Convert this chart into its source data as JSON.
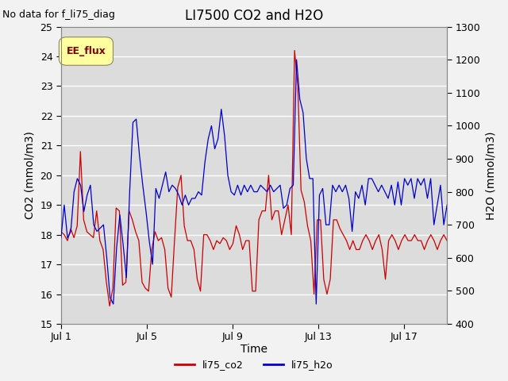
{
  "title": "LI7500 CO2 and H2O",
  "top_left_text": "No data for f_li75_diag",
  "xlabel": "Time",
  "ylabel_left": "CO2 (mmol/m3)",
  "ylabel_right": "H2O (mmol/m3)",
  "ylim_left": [
    15.0,
    25.0
  ],
  "ylim_right": [
    400,
    1300
  ],
  "yticks_left": [
    15.0,
    16.0,
    17.0,
    18.0,
    19.0,
    20.0,
    21.0,
    22.0,
    23.0,
    24.0,
    25.0
  ],
  "yticks_right": [
    400,
    500,
    600,
    700,
    800,
    900,
    1000,
    1100,
    1200,
    1300
  ],
  "xtick_labels": [
    "Jul 1",
    "Jul 5",
    "Jul 9",
    "Jul 13",
    "Jul 17"
  ],
  "xtick_positions": [
    0,
    4,
    8,
    12,
    16
  ],
  "xlim": [
    0,
    18
  ],
  "bg_color": "#dcdcdc",
  "grid_color": "#ffffff",
  "co2_color": "#cc0000",
  "h2o_color": "#0000cc",
  "legend_label_co2": "li75_co2",
  "legend_label_h2o": "li75_h2o",
  "ee_flux_box_color": "#ffffa0",
  "ee_flux_text_color": "#800000",
  "title_fontsize": 12,
  "axis_label_fontsize": 10,
  "tick_fontsize": 9,
  "annotation_fontsize": 9,
  "legend_fontsize": 9,
  "co2_data": [
    18.1,
    18.0,
    17.8,
    18.2,
    17.9,
    18.3,
    20.8,
    18.5,
    18.1,
    18.0,
    17.9,
    18.8,
    17.8,
    17.5,
    16.4,
    15.6,
    16.2,
    18.9,
    18.8,
    16.3,
    16.4,
    18.8,
    18.5,
    18.1,
    17.8,
    16.4,
    16.2,
    16.1,
    17.5,
    18.1,
    17.8,
    17.9,
    17.5,
    16.2,
    15.9,
    17.8,
    19.6,
    20.0,
    18.3,
    17.8,
    17.8,
    17.5,
    16.5,
    16.1,
    18.0,
    18.0,
    17.8,
    17.5,
    17.8,
    17.7,
    17.9,
    17.8,
    17.5,
    17.7,
    18.3,
    18.0,
    17.5,
    17.8,
    17.8,
    16.1,
    16.1,
    18.5,
    18.8,
    18.8,
    20.0,
    18.5,
    18.8,
    18.8,
    18.0,
    18.5,
    19.0,
    18.0,
    24.2,
    23.0,
    19.5,
    19.1,
    18.3,
    17.8,
    16.0,
    18.5,
    18.5,
    16.5,
    16.0,
    16.5,
    18.5,
    18.5,
    18.2,
    18.0,
    17.8,
    17.5,
    17.8,
    17.5,
    17.5,
    17.8,
    18.0,
    17.8,
    17.5,
    17.8,
    18.0,
    17.5,
    16.5,
    17.8,
    18.0,
    17.8,
    17.5,
    17.8,
    18.0,
    17.8,
    17.8,
    18.0,
    17.8,
    17.8,
    17.5,
    17.8,
    18.0,
    17.8,
    17.5,
    17.8,
    18.0,
    17.8
  ],
  "h2o_data": [
    660,
    760,
    660,
    680,
    800,
    840,
    820,
    740,
    790,
    820,
    700,
    680,
    690,
    700,
    600,
    480,
    460,
    630,
    730,
    640,
    540,
    800,
    1010,
    1020,
    910,
    820,
    740,
    650,
    580,
    810,
    780,
    820,
    860,
    800,
    820,
    810,
    790,
    760,
    790,
    760,
    780,
    780,
    800,
    790,
    890,
    960,
    1000,
    930,
    960,
    1050,
    970,
    850,
    800,
    790,
    820,
    790,
    820,
    800,
    820,
    800,
    800,
    820,
    810,
    800,
    820,
    800,
    810,
    820,
    750,
    760,
    810,
    820,
    1200,
    1080,
    1040,
    900,
    840,
    840,
    460,
    790,
    810,
    700,
    700,
    820,
    800,
    820,
    800,
    820,
    780,
    680,
    800,
    780,
    820,
    760,
    840,
    840,
    820,
    800,
    820,
    800,
    780,
    820,
    760,
    830,
    760,
    840,
    820,
    840,
    780,
    840,
    820,
    840,
    780,
    840,
    700,
    760,
    820,
    700,
    760
  ]
}
